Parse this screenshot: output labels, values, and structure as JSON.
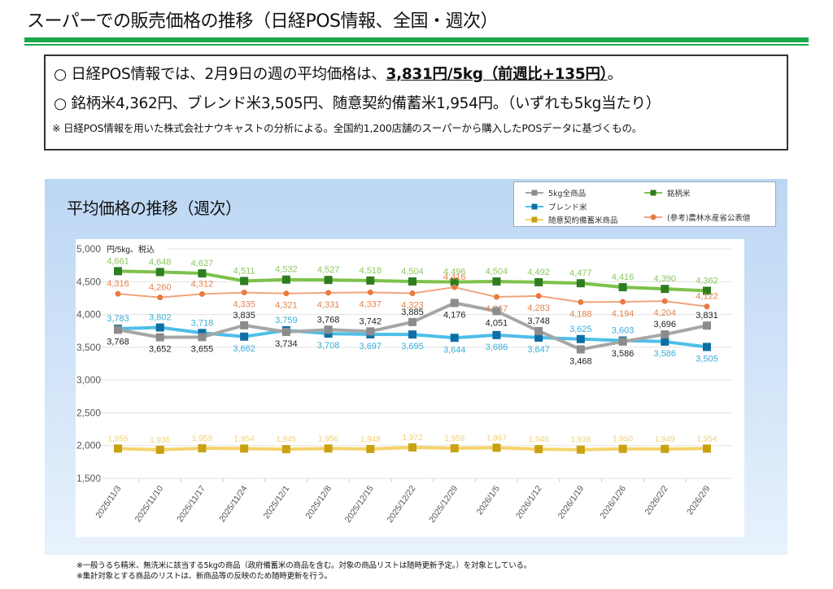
{
  "page": {
    "title": "スーパーでの販売価格の推移（日経POS情報、全国・週次）"
  },
  "summary": {
    "line1_prefix": "○  日経POS情報では、2月9日の週の平均価格は、",
    "line1_highlight": "3,831円/5kg（前週比+135円）",
    "line1_suffix": "。",
    "line2": "○  銘柄米4,362円、ブレンド米3,505円、随意契約備蓄米1,954円。（いずれも5kg当たり）",
    "note": "※  日経POS情報を用いた株式会社ナウキャストの分析による。全国約1,200店舗のスーパーから購入したPOSデータに基づくもの。"
  },
  "footnotes": [
    "※一般うるち精米、無洗米に該当する5kgの商品（政府備蓄米の商品を含む。対象の商品リストは随時更新予定。）を対象としている。",
    "※集計対象とする商品のリストは、新商品等の反映のため随時更新を行う。"
  ],
  "chart_data": {
    "type": "line",
    "title": "平均価格の推移（週次）",
    "ylabel": "円/5kg、税込",
    "xlabel": "",
    "ylim": [
      1500,
      5000
    ],
    "yticks": [
      1500,
      2000,
      2500,
      3000,
      3500,
      4000,
      4500,
      5000
    ],
    "ytick_labels": [
      "1,500",
      "2,000",
      "2,500",
      "3,000",
      "3,500",
      "4,000",
      "4,500",
      "5,000"
    ],
    "grid": true,
    "legend_position": "top-right",
    "categories": [
      "2025/11/3",
      "2025/11/10",
      "2025/11/17",
      "2025/11/24",
      "2025/12/1",
      "2025/12/8",
      "2025/12/15",
      "2025/12/22",
      "2025/12/29",
      "2026/1/5",
      "2026/1/12",
      "2026/1/19",
      "2026/1/26",
      "2026/2/2",
      "2026/2/9"
    ],
    "series": [
      {
        "name": "銘柄米",
        "color": "#7dc24b",
        "marker_color": "#2e7d1f",
        "marker": "square",
        "label_color": "#8cc860",
        "label_pos": "above",
        "values": [
          4661,
          4648,
          4627,
          4511,
          4532,
          4527,
          4518,
          4504,
          4496,
          4504,
          4492,
          4477,
          4416,
          4390,
          4362
        ]
      },
      {
        "name": "(参考)農林水産省公表値",
        "color": "#f0a47c",
        "marker_color": "#ea7a3f",
        "marker": "circle",
        "label_color": "#e3844d",
        "label_pos": [
          "above",
          "above",
          "above",
          "below",
          "below",
          "below",
          "below",
          "below",
          "above",
          "below",
          "below",
          "below",
          "below",
          "below",
          "above"
        ],
        "values": [
          4316,
          4260,
          4312,
          4335,
          4321,
          4331,
          4337,
          4323,
          4416,
          4267,
          4283,
          4188,
          4194,
          4204,
          4122
        ]
      },
      {
        "name": "5kg全商品",
        "color": "#a6a6a6",
        "marker_color": "#8c8c8c",
        "marker": "square",
        "label_color": "#222222",
        "label_pos": [
          "below",
          "below",
          "below",
          "above",
          "below",
          "above",
          "above",
          "above",
          "below",
          "below",
          "above",
          "below",
          "below",
          "above",
          "above"
        ],
        "values": [
          3768,
          3652,
          3655,
          3835,
          3734,
          3768,
          3742,
          3885,
          4176,
          4051,
          3748,
          3468,
          3586,
          3696,
          3831
        ]
      },
      {
        "name": "ブレンド米",
        "color": "#4dbfe8",
        "marker_color": "#0e6fa5",
        "marker": "square",
        "label_color": "#3aaed8",
        "label_pos": [
          "above",
          "above",
          "above",
          "below",
          "above",
          "below",
          "below",
          "below",
          "below",
          "below",
          "below",
          "above",
          "above",
          "below",
          "below"
        ],
        "values": [
          3783,
          3802,
          3718,
          3662,
          3759,
          3708,
          3697,
          3695,
          3644,
          3686,
          3647,
          3625,
          3603,
          3586,
          3505
        ]
      },
      {
        "name": "随意契約備蓄米商品",
        "color": "#f5d36b",
        "marker_color": "#c9a113",
        "marker": "square",
        "label_color": "#f0d27a",
        "label_pos": "above",
        "values": [
          1955,
          1936,
          1959,
          1954,
          1945,
          1956,
          1948,
          1972,
          1959,
          1967,
          1946,
          1938,
          1950,
          1949,
          1954
        ]
      }
    ],
    "legend": [
      {
        "name": "5kg全商品",
        "series": 2
      },
      {
        "name": "銘柄米",
        "series": 0
      },
      {
        "name": "ブレンド米",
        "series": 3
      },
      {
        "name": "随意契約備蓄米商品",
        "series": 4
      },
      {
        "name": "(参考)農林水産省公表値",
        "series": 1
      }
    ]
  }
}
